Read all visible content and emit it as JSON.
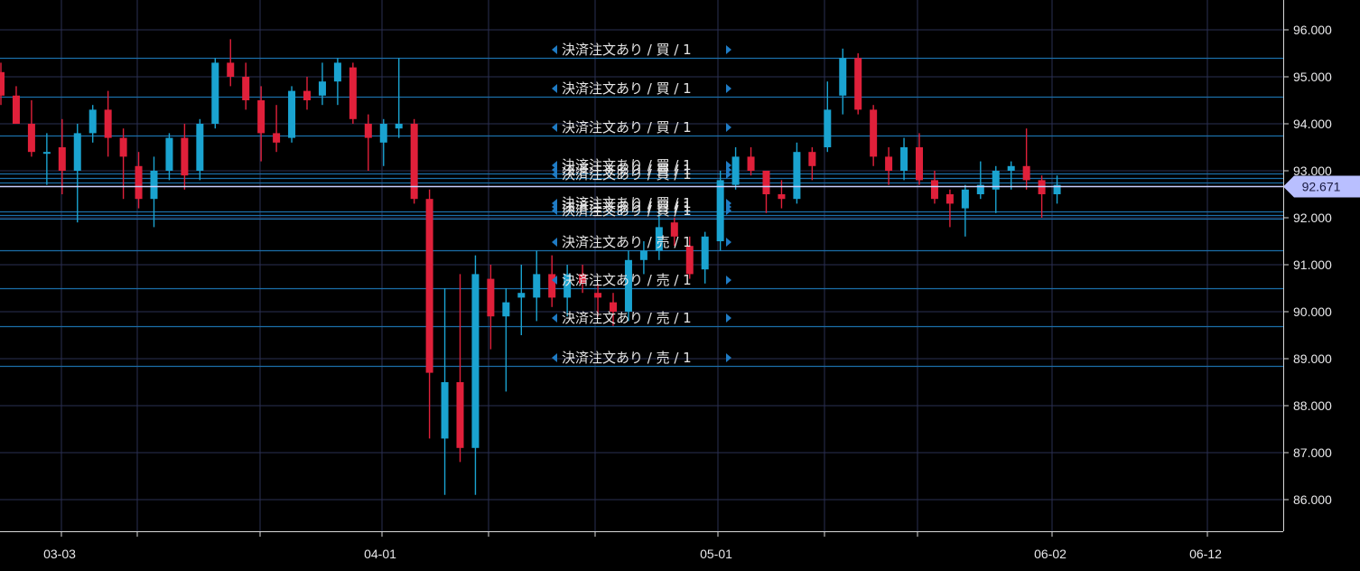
{
  "chart_data": {
    "type": "candlestick",
    "title": "",
    "xlabel": "",
    "ylabel": "",
    "ylim": [
      85.34,
      96.6
    ],
    "y_ticks": [
      "96.000",
      "95.000",
      "94.000",
      "93.000",
      "92.000",
      "91.000",
      "90.000",
      "89.000",
      "88.000",
      "87.000",
      "86.000"
    ],
    "x_labels": [
      "03-03",
      "04-01",
      "05-01",
      "06-02",
      "06-12"
    ],
    "current_price": "92.671",
    "colors": {
      "up": "#1aa3d0",
      "down": "#e0203a",
      "grid": "#2a2f52",
      "order_line": "#1b6ea8",
      "current_line": "#c8d0ff",
      "current_tag": "#b9bfff",
      "arrow": "#1f7bc4",
      "axis_text": "#e8e8ea"
    },
    "candles": [
      {
        "o": 95.1,
        "h": 95.3,
        "l": 94.4,
        "c": 94.6
      },
      {
        "o": 94.6,
        "h": 94.8,
        "l": 94.0,
        "c": 94.0
      },
      {
        "o": 94.0,
        "h": 94.5,
        "l": 93.3,
        "c": 93.4
      },
      {
        "o": 93.4,
        "h": 93.8,
        "l": 92.7,
        "c": 93.4
      },
      {
        "o": 93.5,
        "h": 94.1,
        "l": 92.5,
        "c": 93.0
      },
      {
        "o": 93.0,
        "h": 94.0,
        "l": 91.9,
        "c": 93.8
      },
      {
        "o": 93.8,
        "h": 94.4,
        "l": 93.6,
        "c": 94.3
      },
      {
        "o": 94.3,
        "h": 94.7,
        "l": 93.3,
        "c": 93.7
      },
      {
        "o": 93.7,
        "h": 93.9,
        "l": 92.4,
        "c": 93.3
      },
      {
        "o": 93.1,
        "h": 93.4,
        "l": 92.2,
        "c": 92.4
      },
      {
        "o": 92.4,
        "h": 93.3,
        "l": 91.8,
        "c": 93.0
      },
      {
        "o": 93.0,
        "h": 93.8,
        "l": 92.8,
        "c": 93.7
      },
      {
        "o": 93.7,
        "h": 94.0,
        "l": 92.6,
        "c": 92.9
      },
      {
        "o": 93.0,
        "h": 94.1,
        "l": 92.8,
        "c": 94.0
      },
      {
        "o": 94.0,
        "h": 95.4,
        "l": 93.9,
        "c": 95.3
      },
      {
        "o": 95.3,
        "h": 95.8,
        "l": 94.8,
        "c": 95.0
      },
      {
        "o": 95.0,
        "h": 95.3,
        "l": 94.3,
        "c": 94.5
      },
      {
        "o": 94.5,
        "h": 94.8,
        "l": 93.2,
        "c": 93.8
      },
      {
        "o": 93.8,
        "h": 94.4,
        "l": 93.4,
        "c": 93.6
      },
      {
        "o": 93.7,
        "h": 94.8,
        "l": 93.6,
        "c": 94.7
      },
      {
        "o": 94.7,
        "h": 95.0,
        "l": 94.3,
        "c": 94.5
      },
      {
        "o": 94.6,
        "h": 95.3,
        "l": 94.4,
        "c": 94.9
      },
      {
        "o": 94.9,
        "h": 95.4,
        "l": 94.4,
        "c": 95.3
      },
      {
        "o": 95.2,
        "h": 95.3,
        "l": 94.0,
        "c": 94.1
      },
      {
        "o": 94.0,
        "h": 94.2,
        "l": 93.0,
        "c": 93.7
      },
      {
        "o": 93.6,
        "h": 94.1,
        "l": 93.1,
        "c": 94.0
      },
      {
        "o": 93.9,
        "h": 95.4,
        "l": 93.7,
        "c": 94.0
      },
      {
        "o": 94.0,
        "h": 94.1,
        "l": 92.3,
        "c": 92.4
      },
      {
        "o": 92.4,
        "h": 92.6,
        "l": 87.3,
        "c": 88.7
      },
      {
        "o": 87.3,
        "h": 90.5,
        "l": 86.1,
        "c": 88.5
      },
      {
        "o": 88.5,
        "h": 90.8,
        "l": 86.8,
        "c": 87.1
      },
      {
        "o": 87.1,
        "h": 91.2,
        "l": 86.1,
        "c": 90.8
      },
      {
        "o": 90.7,
        "h": 91.0,
        "l": 89.2,
        "c": 89.9
      },
      {
        "o": 89.9,
        "h": 90.5,
        "l": 88.3,
        "c": 90.2
      },
      {
        "o": 90.3,
        "h": 91.0,
        "l": 89.5,
        "c": 90.4
      },
      {
        "o": 90.3,
        "h": 91.3,
        "l": 89.8,
        "c": 90.8
      },
      {
        "o": 90.8,
        "h": 91.2,
        "l": 90.1,
        "c": 90.3
      },
      {
        "o": 90.3,
        "h": 91.0,
        "l": 89.9,
        "c": 90.8
      },
      {
        "o": 90.8,
        "h": 91.0,
        "l": 90.4,
        "c": 90.6
      },
      {
        "o": 90.4,
        "h": 90.6,
        "l": 89.9,
        "c": 90.3
      },
      {
        "o": 90.2,
        "h": 90.4,
        "l": 89.7,
        "c": 90.0
      },
      {
        "o": 90.0,
        "h": 91.3,
        "l": 89.8,
        "c": 91.1
      },
      {
        "o": 91.1,
        "h": 91.5,
        "l": 90.8,
        "c": 91.3
      },
      {
        "o": 91.3,
        "h": 92.2,
        "l": 91.1,
        "c": 91.8
      },
      {
        "o": 91.9,
        "h": 92.0,
        "l": 91.4,
        "c": 91.6
      },
      {
        "o": 91.4,
        "h": 91.6,
        "l": 90.7,
        "c": 90.8
      },
      {
        "o": 90.9,
        "h": 91.7,
        "l": 90.6,
        "c": 91.6
      },
      {
        "o": 91.5,
        "h": 93.0,
        "l": 91.3,
        "c": 92.8
      },
      {
        "o": 92.7,
        "h": 93.5,
        "l": 92.6,
        "c": 93.3
      },
      {
        "o": 93.3,
        "h": 93.5,
        "l": 92.9,
        "c": 93.0
      },
      {
        "o": 93.0,
        "h": 93.0,
        "l": 92.1,
        "c": 92.5
      },
      {
        "o": 92.5,
        "h": 92.8,
        "l": 92.2,
        "c": 92.4
      },
      {
        "o": 92.4,
        "h": 93.6,
        "l": 92.3,
        "c": 93.4
      },
      {
        "o": 93.4,
        "h": 93.5,
        "l": 92.8,
        "c": 93.1
      },
      {
        "o": 93.5,
        "h": 94.9,
        "l": 93.4,
        "c": 94.3
      },
      {
        "o": 94.6,
        "h": 95.6,
        "l": 94.2,
        "c": 95.4
      },
      {
        "o": 95.4,
        "h": 95.5,
        "l": 94.2,
        "c": 94.3
      },
      {
        "o": 94.3,
        "h": 94.4,
        "l": 93.1,
        "c": 93.3
      },
      {
        "o": 93.3,
        "h": 93.5,
        "l": 92.7,
        "c": 93.0
      },
      {
        "o": 93.0,
        "h": 93.7,
        "l": 92.8,
        "c": 93.5
      },
      {
        "o": 93.5,
        "h": 93.8,
        "l": 92.7,
        "c": 92.8
      },
      {
        "o": 92.8,
        "h": 93.0,
        "l": 92.3,
        "c": 92.4
      },
      {
        "o": 92.5,
        "h": 92.6,
        "l": 91.8,
        "c": 92.3
      },
      {
        "o": 92.2,
        "h": 92.7,
        "l": 91.6,
        "c": 92.6
      },
      {
        "o": 92.5,
        "h": 93.2,
        "l": 92.4,
        "c": 92.7
      },
      {
        "o": 92.6,
        "h": 93.1,
        "l": 92.1,
        "c": 93.0
      },
      {
        "o": 93.0,
        "h": 93.2,
        "l": 92.6,
        "c": 93.1
      },
      {
        "o": 93.1,
        "h": 93.9,
        "l": 92.6,
        "c": 92.8
      },
      {
        "o": 92.8,
        "h": 92.9,
        "l": 92.0,
        "c": 92.5
      },
      {
        "o": 92.5,
        "h": 92.9,
        "l": 92.3,
        "c": 92.7
      }
    ],
    "orders": [
      {
        "label": "決済注文あり / 買 / 1",
        "price": 95.4
      },
      {
        "label": "決済注文あり / 買 / 1",
        "price": 94.58
      },
      {
        "label": "決済注文あり / 買 / 1",
        "price": 93.75
      },
      {
        "label": "決済注文あり / 買 / 1",
        "price": 92.95
      },
      {
        "label": "決済注文あり / 買 / 1",
        "price": 92.85
      },
      {
        "label": "決済注文あり / 買 / 1",
        "price": 92.75
      },
      {
        "label": "決済注文あり / 買 / 1",
        "price": 92.14
      },
      {
        "label": "決済注文あり / 買 / 1",
        "price": 92.06
      },
      {
        "label": "決済注文あり / 買 / 1",
        "price": 91.98
      },
      {
        "label": "決済注文あり / 売 / 1",
        "price": 91.3
      },
      {
        "label": "決済注文あり / 売 / 1",
        "price": 90.5
      },
      {
        "label": "決済注文あり / 売 / 1",
        "price": 89.7
      },
      {
        "label": "決済注文あり / 売 / 1",
        "price": 88.85
      }
    ]
  }
}
